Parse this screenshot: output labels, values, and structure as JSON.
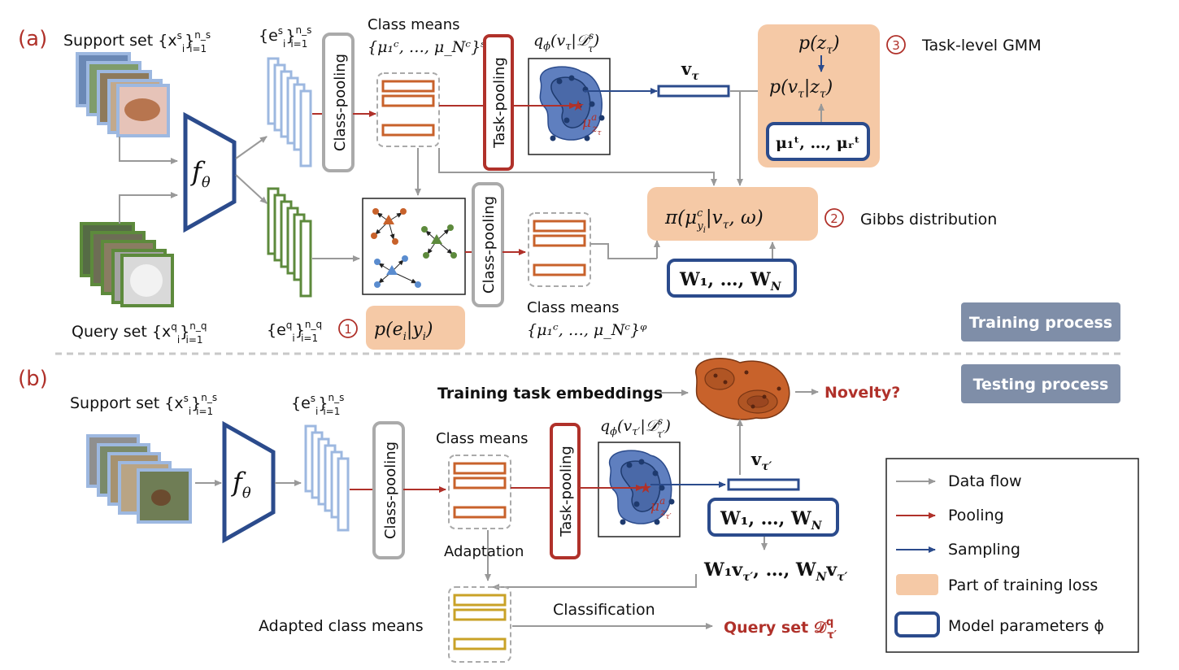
{
  "colors": {
    "red": "#b0312a",
    "navy": "#2b4b8c",
    "peach": "#f5c9a6",
    "gray_badge": "#7f8ea8",
    "orange": "#c8622b",
    "gold": "#c9a227",
    "green": "#5d8a3c",
    "light_blue": "#9db8e0"
  },
  "panel_a": {
    "label": "(a)",
    "support_set": "Support set {x",
    "query_set": "Query set {x",
    "encoder": "f",
    "encoder_sub": "θ",
    "emb_support": "{e",
    "emb_query": "{e",
    "class_pooling": "Class-pooling",
    "task_pooling": "Task-pooling",
    "class_means_s": "Class means",
    "class_means_s_formula": "{μ₁ᶜ, …, μ_Nᶜ}ˢ",
    "class_means_q": "Class means",
    "class_means_q_formula": "{μ₁ᶜ, …, μ_Nᶜ}ᵠ",
    "q_phi": "q",
    "v_tau": "v",
    "p_z": "p(z",
    "p_v_given_z": "p(v",
    "mu_t": "μ₁ᵗ, …, μᵣᵗ",
    "step3_num": "3",
    "step3_label": "Task-level GMM",
    "gibbs_formula": "π(μ",
    "step2_num": "2",
    "step2_label": "Gibbs distribution",
    "W_box": "W₁, …, W",
    "step1_num": "1",
    "p_e_y": "p(e",
    "mu_za": "μ",
    "training_badge": "Training process"
  },
  "panel_b": {
    "label": "(b)",
    "support_set": "Support set {x",
    "encoder": "f",
    "encoder_sub": "θ",
    "emb_support": "{e",
    "class_pooling": "Class-pooling",
    "task_pooling": "Task-pooling",
    "class_means": "Class means",
    "q_phi": "q",
    "training_task_embeddings": "Training task embeddings",
    "novelty": "Novelty?",
    "testing_badge": "Testing process",
    "v_tau_prime": "v",
    "W_box": "W₁, …, W",
    "Wv": "W₁v",
    "adaptation": "Adaptation",
    "adapted_class_means": "Adapted class means",
    "classification": "Classification",
    "query_set_D": "Query set 𝒟"
  },
  "legend": {
    "items": [
      {
        "label": "Data flow",
        "kind": "gray"
      },
      {
        "label": "Pooling",
        "kind": "red"
      },
      {
        "label": "Sampling",
        "kind": "navy"
      },
      {
        "label": "Part of training loss",
        "kind": "peach"
      },
      {
        "label": "Model parameters ϕ",
        "kind": "box"
      }
    ]
  }
}
